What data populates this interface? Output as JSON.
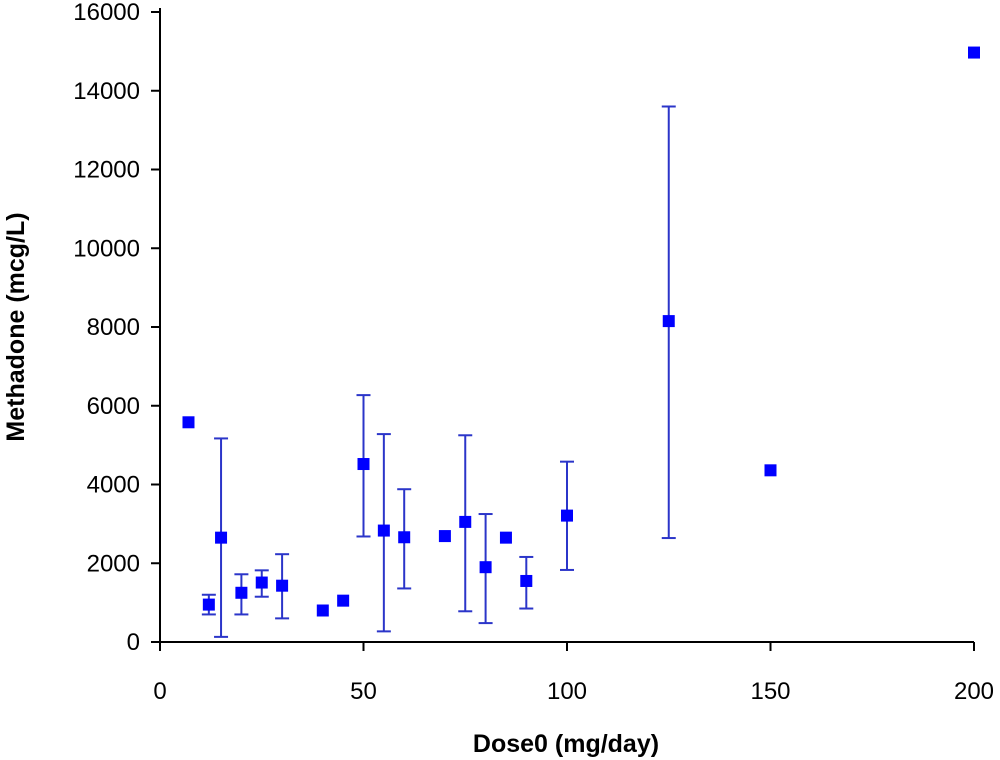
{
  "chart_data": {
    "type": "scatter",
    "title": "",
    "xlabel": "Dose0 (mg/day)",
    "ylabel": "Methadone (mcg/L)",
    "xlim": [
      0,
      200
    ],
    "ylim": [
      0,
      16000
    ],
    "xticks": [
      0,
      50,
      100,
      150,
      200
    ],
    "yticks": [
      0,
      2000,
      4000,
      6000,
      8000,
      10000,
      12000,
      14000,
      16000
    ],
    "grid": false,
    "legend": "none",
    "marker": "square",
    "error_bars": true,
    "colors": {
      "marker": "#0000FF",
      "error_bar": "#2B35C9",
      "axis": "#000000"
    },
    "points": [
      {
        "x": 7,
        "y": 5580
      },
      {
        "x": 12,
        "y": 950,
        "lo": 700,
        "hi": 1200
      },
      {
        "x": 15,
        "y": 2650,
        "lo": 130,
        "hi": 5170
      },
      {
        "x": 20,
        "y": 1250,
        "lo": 700,
        "hi": 1720
      },
      {
        "x": 25,
        "y": 1510,
        "lo": 1150,
        "hi": 1820
      },
      {
        "x": 30,
        "y": 1430,
        "lo": 600,
        "hi": 2230
      },
      {
        "x": 40,
        "y": 800
      },
      {
        "x": 45,
        "y": 1050
      },
      {
        "x": 50,
        "y": 4520,
        "lo": 2680,
        "hi": 6270
      },
      {
        "x": 55,
        "y": 2830,
        "lo": 270,
        "hi": 5280
      },
      {
        "x": 60,
        "y": 2660,
        "lo": 1360,
        "hi": 3880
      },
      {
        "x": 70,
        "y": 2690
      },
      {
        "x": 75,
        "y": 3050,
        "lo": 780,
        "hi": 5250
      },
      {
        "x": 80,
        "y": 1900,
        "lo": 480,
        "hi": 3250
      },
      {
        "x": 85,
        "y": 2650
      },
      {
        "x": 90,
        "y": 1550,
        "lo": 850,
        "hi": 2160
      },
      {
        "x": 100,
        "y": 3210,
        "lo": 1830,
        "hi": 4580
      },
      {
        "x": 125,
        "y": 8150,
        "lo": 2640,
        "hi": 13600
      },
      {
        "x": 150,
        "y": 4360
      },
      {
        "x": 200,
        "y": 14970
      }
    ]
  }
}
